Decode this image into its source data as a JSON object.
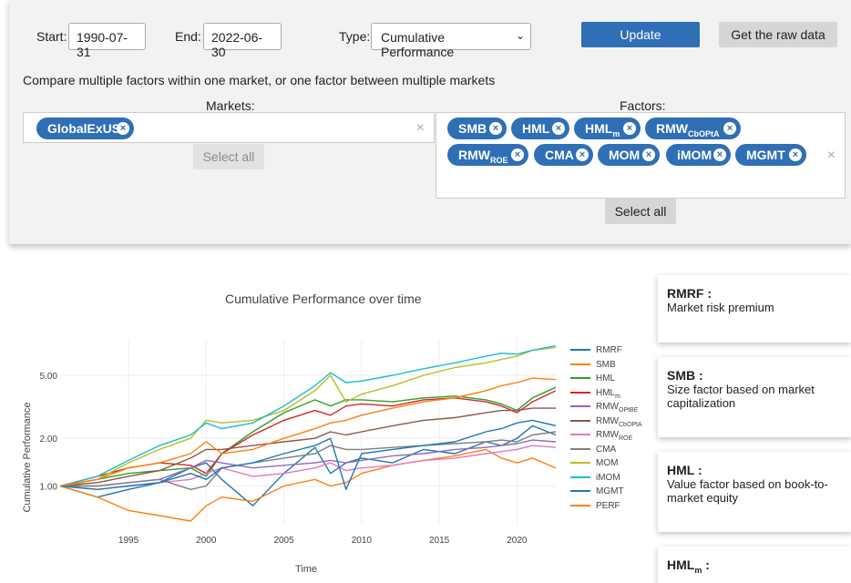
{
  "controls": {
    "start_label": "Start:",
    "start_value": "1990-07-31",
    "end_label": "End:",
    "end_value": "2022-06-30",
    "type_label": "Type:",
    "type_value": "Cumulative Performance",
    "update_label": "Update",
    "raw_label": "Get the raw data",
    "hint": "Compare multiple factors within one market, or one factor between multiple markets",
    "markets_label": "Markets:",
    "factors_label": "Factors:",
    "select_all_markets": "Select all",
    "select_all_factors": "Select all",
    "markets": [
      "GlobalExUS"
    ],
    "factors": [
      {
        "main": "SMB",
        "sub": ""
      },
      {
        "main": "HML",
        "sub": ""
      },
      {
        "main": "HML",
        "sub": "m"
      },
      {
        "main": "RMW",
        "sub": "CbOPtA"
      },
      {
        "main": "RMW",
        "sub": "ROE"
      },
      {
        "main": "CMA",
        "sub": ""
      },
      {
        "main": "MOM",
        "sub": ""
      },
      {
        "main": "iMOM",
        "sub": ""
      },
      {
        "main": "MGMT",
        "sub": ""
      }
    ],
    "clear_symbol": "×",
    "chip_remove_symbol": "×"
  },
  "cards": [
    {
      "title": "RMRF :",
      "desc": "Market risk premium"
    },
    {
      "title": "SMB :",
      "desc": "Size factor based on market capitalization"
    },
    {
      "title": "HML :",
      "desc": "Value factor based on book-to-market equity"
    },
    {
      "title": "HML",
      "title_sub": "m",
      "title_suffix": " :",
      "desc": ""
    }
  ],
  "chart_data": {
    "type": "line",
    "title": "Cumulative Performance over time",
    "xlabel": "Time",
    "ylabel": "Cumulative Performance",
    "yscale": "log",
    "xlim": [
      1990.6,
      2022.5
    ],
    "ylim": [
      0.6,
      8.5
    ],
    "x_ticks": [
      1995,
      2000,
      2005,
      2010,
      2015,
      2020
    ],
    "y_ticks": [
      {
        "value": 1,
        "label": "1.00"
      },
      {
        "value": 2,
        "label": "2.00"
      },
      {
        "value": 5,
        "label": "5.00"
      }
    ],
    "grid": true,
    "legend_position": "right",
    "x": [
      1990.6,
      1993,
      1995,
      1997,
      1999,
      2000,
      2001,
      2003,
      2005,
      2007,
      2008,
      2009,
      2010,
      2012,
      2014,
      2016,
      2018,
      2019,
      2020,
      2021,
      2022.5
    ],
    "series": [
      {
        "name": "RMRF",
        "sub": "",
        "color": "#1f77b4",
        "values": [
          1.0,
          0.85,
          0.95,
          1.05,
          1.3,
          1.4,
          1.1,
          0.75,
          1.2,
          1.75,
          1.2,
          1.4,
          1.5,
          1.4,
          1.7,
          1.6,
          1.9,
          1.8,
          2.0,
          2.4,
          2.1
        ]
      },
      {
        "name": "SMB",
        "sub": "",
        "color": "#ff7f0e",
        "values": [
          1.0,
          0.85,
          0.7,
          0.65,
          0.6,
          0.75,
          0.85,
          0.8,
          1.0,
          1.1,
          1.0,
          1.05,
          1.2,
          1.35,
          1.45,
          1.55,
          1.7,
          1.5,
          1.4,
          1.5,
          1.3
        ]
      },
      {
        "name": "HML",
        "sub": "",
        "color": "#2ca02c",
        "values": [
          1.0,
          1.1,
          1.2,
          1.25,
          1.3,
          1.15,
          1.6,
          2.2,
          2.9,
          3.5,
          3.2,
          3.5,
          3.5,
          3.4,
          3.6,
          3.7,
          3.5,
          3.3,
          3.0,
          3.6,
          4.2
        ]
      },
      {
        "name": "HML",
        "sub": "m",
        "color": "#d62728",
        "values": [
          1.0,
          1.15,
          1.3,
          1.4,
          1.35,
          1.2,
          1.6,
          2.1,
          2.6,
          3.0,
          2.8,
          3.2,
          3.3,
          3.2,
          3.5,
          3.6,
          3.4,
          3.2,
          2.9,
          3.4,
          4.0
        ]
      },
      {
        "name": "RMW",
        "sub": "OPtBE",
        "color": "#9467bd",
        "values": [
          1.0,
          1.0,
          1.05,
          1.1,
          1.3,
          1.45,
          1.4,
          1.3,
          1.35,
          1.4,
          1.45,
          1.4,
          1.45,
          1.55,
          1.6,
          1.7,
          1.75,
          1.8,
          1.85,
          1.95,
          1.9
        ]
      },
      {
        "name": "RMW",
        "sub": "CbOPtA",
        "color": "#8c564b",
        "values": [
          1.0,
          1.05,
          1.15,
          1.25,
          1.5,
          1.7,
          1.7,
          1.8,
          1.9,
          2.0,
          2.2,
          2.1,
          2.2,
          2.4,
          2.6,
          2.7,
          2.9,
          3.0,
          3.0,
          3.1,
          3.1
        ]
      },
      {
        "name": "RMW",
        "sub": "ROE",
        "color": "#e377c2",
        "values": [
          1.0,
          0.95,
          1.0,
          1.05,
          1.1,
          1.2,
          1.3,
          1.15,
          1.2,
          1.3,
          1.4,
          1.25,
          1.3,
          1.35,
          1.45,
          1.5,
          1.6,
          1.65,
          1.7,
          1.8,
          1.75
        ]
      },
      {
        "name": "CMA",
        "sub": "",
        "color": "#7f7f7f",
        "values": [
          1.0,
          1.0,
          1.05,
          1.1,
          0.95,
          1.0,
          1.3,
          1.4,
          1.5,
          1.6,
          1.8,
          1.7,
          1.7,
          1.75,
          1.8,
          1.85,
          1.9,
          1.95,
          1.9,
          2.1,
          2.2
        ]
      },
      {
        "name": "MOM",
        "sub": "",
        "color": "#bcbd22",
        "values": [
          1.0,
          1.1,
          1.4,
          1.7,
          2.0,
          2.6,
          2.5,
          2.6,
          3.0,
          4.0,
          5.0,
          3.4,
          3.8,
          4.3,
          5.0,
          5.6,
          6.0,
          6.3,
          6.6,
          7.2,
          7.5
        ]
      },
      {
        "name": "iMOM",
        "sub": "",
        "color": "#17becf",
        "values": [
          1.0,
          1.15,
          1.45,
          1.8,
          2.1,
          2.5,
          2.3,
          2.5,
          3.2,
          4.3,
          5.2,
          4.5,
          4.6,
          5.0,
          5.5,
          6.0,
          6.6,
          6.9,
          6.8,
          7.2,
          7.7
        ]
      },
      {
        "name": "MGMT",
        "sub": "",
        "color": "#1f77b4",
        "values": [
          1.0,
          0.95,
          1.0,
          1.05,
          1.2,
          1.1,
          1.3,
          1.4,
          1.6,
          1.8,
          2.0,
          0.95,
          1.6,
          1.7,
          1.8,
          1.9,
          2.2,
          2.3,
          2.5,
          2.6,
          2.4
        ]
      },
      {
        "name": "PERF",
        "sub": "",
        "color": "#ff7f0e",
        "values": [
          1.0,
          1.1,
          1.3,
          1.4,
          1.6,
          1.9,
          1.6,
          1.7,
          2.0,
          2.3,
          2.5,
          2.6,
          2.8,
          3.1,
          3.4,
          3.6,
          4.0,
          4.3,
          4.5,
          4.8,
          4.7
        ]
      }
    ]
  }
}
